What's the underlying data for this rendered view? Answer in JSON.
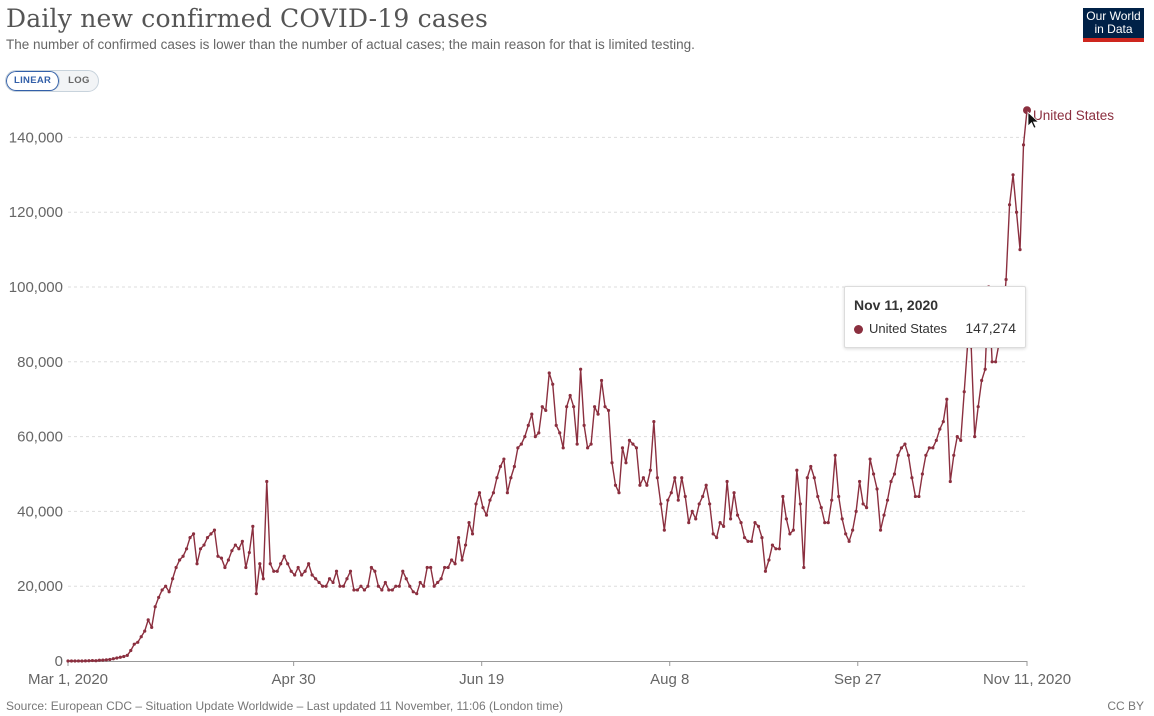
{
  "header": {
    "title": "Daily new confirmed COVID-19 cases",
    "subtitle": "The number of confirmed cases is lower than the number of actual cases; the main reason for that is limited testing.",
    "logo_line1": "Our World",
    "logo_line2": "in Data"
  },
  "controls": {
    "linear_label": "LINEAR",
    "log_label": "LOG",
    "selected": "LINEAR"
  },
  "tooltip": {
    "date": "Nov 11, 2020",
    "series": "United States",
    "value": "147,274"
  },
  "footer": {
    "source": "Source: European CDC – Situation Update Worldwide – Last updated 11 November, 11:06 (London time)",
    "license": "CC BY"
  },
  "colors": {
    "series": "#8b2f3f",
    "grid": "#dddddd",
    "axis": "#999999"
  },
  "chart_data": {
    "type": "line",
    "title": "Daily new confirmed COVID-19 cases",
    "ylim": [
      0,
      150000
    ],
    "yticks": [
      {
        "value": 0,
        "label": "0"
      },
      {
        "value": 20000,
        "label": "20,000"
      },
      {
        "value": 40000,
        "label": "40,000"
      },
      {
        "value": 60000,
        "label": "60,000"
      },
      {
        "value": 80000,
        "label": "80,000"
      },
      {
        "value": 100000,
        "label": "100,000"
      },
      {
        "value": 120000,
        "label": "120,000"
      },
      {
        "value": 140000,
        "label": "140,000"
      }
    ],
    "xticks": [
      {
        "date": "2020-03-01",
        "label": "Mar 1, 2020"
      },
      {
        "date": "2020-04-30",
        "label": "Apr 30"
      },
      {
        "date": "2020-06-19",
        "label": "Jun 19"
      },
      {
        "date": "2020-08-08",
        "label": "Aug 8"
      },
      {
        "date": "2020-09-27",
        "label": "Sep 27"
      },
      {
        "date": "2020-11-11",
        "label": "Nov 11, 2020"
      }
    ],
    "grid": true,
    "legend": "right-end label",
    "series": [
      {
        "name": "United States",
        "start_date": "2020-03-01",
        "values": [
          0,
          5,
          5,
          13,
          9,
          30,
          60,
          120,
          80,
          200,
          230,
          300,
          400,
          600,
          800,
          1000,
          1200,
          1500,
          2800,
          4500,
          5000,
          6500,
          8000,
          11000,
          9000,
          14500,
          17000,
          19000,
          20000,
          18500,
          22000,
          25000,
          27000,
          28000,
          30000,
          33000,
          34000,
          26000,
          30000,
          31000,
          33000,
          34000,
          35000,
          28000,
          27500,
          25000,
          27000,
          29500,
          31000,
          30000,
          32000,
          25000,
          29000,
          36000,
          18000,
          26000,
          22000,
          48000,
          26000,
          24000,
          24000,
          26000,
          28000,
          26000,
          24000,
          23000,
          25000,
          23000,
          24000,
          26000,
          23000,
          22000,
          21000,
          20000,
          20000,
          22000,
          21000,
          24000,
          20000,
          20000,
          22000,
          24000,
          19000,
          19000,
          20000,
          19000,
          20000,
          25000,
          24000,
          20000,
          19000,
          21000,
          19000,
          19000,
          20000,
          20000,
          24000,
          22000,
          20000,
          18500,
          18000,
          21000,
          20000,
          25000,
          25000,
          20000,
          21000,
          22000,
          25000,
          25000,
          27000,
          26000,
          33000,
          27000,
          31000,
          37000,
          34000,
          42000,
          45000,
          41000,
          39000,
          43000,
          45000,
          49000,
          52000,
          54000,
          45000,
          49000,
          52000,
          57000,
          58000,
          60000,
          63000,
          66000,
          60000,
          61000,
          68000,
          67000,
          77000,
          74000,
          63000,
          61000,
          57000,
          68000,
          71000,
          68000,
          58000,
          78000,
          63000,
          57000,
          58000,
          68000,
          66000,
          75000,
          68000,
          67000,
          53000,
          47000,
          45000,
          57000,
          53000,
          59000,
          58000,
          57000,
          47000,
          49000,
          47000,
          51000,
          64000,
          49000,
          42000,
          35000,
          43000,
          45000,
          49000,
          43000,
          49000,
          44000,
          37000,
          40000,
          38000,
          42000,
          44000,
          47000,
          42000,
          34000,
          33000,
          37000,
          36000,
          48000,
          38000,
          45000,
          39000,
          37000,
          33000,
          32000,
          32000,
          37000,
          36000,
          33000,
          24000,
          27000,
          31000,
          30000,
          30000,
          44000,
          38000,
          34000,
          35000,
          51000,
          42000,
          25000,
          49000,
          52000,
          49000,
          44000,
          41000,
          37000,
          37000,
          43000,
          55000,
          44000,
          38000,
          34000,
          32000,
          35000,
          40000,
          48000,
          42000,
          41000,
          54000,
          50000,
          46000,
          35000,
          39000,
          43000,
          48000,
          50000,
          55000,
          57000,
          58000,
          55000,
          49000,
          44000,
          44000,
          50000,
          55000,
          57000,
          57000,
          59000,
          62000,
          64000,
          70000,
          48000,
          55000,
          60000,
          59000,
          72000,
          85000,
          84000,
          60000,
          68000,
          75000,
          78000,
          100000,
          80000,
          80000,
          85000,
          90000,
          102000,
          122000,
          130000,
          120000,
          110000,
          138000,
          147274
        ]
      }
    ]
  }
}
